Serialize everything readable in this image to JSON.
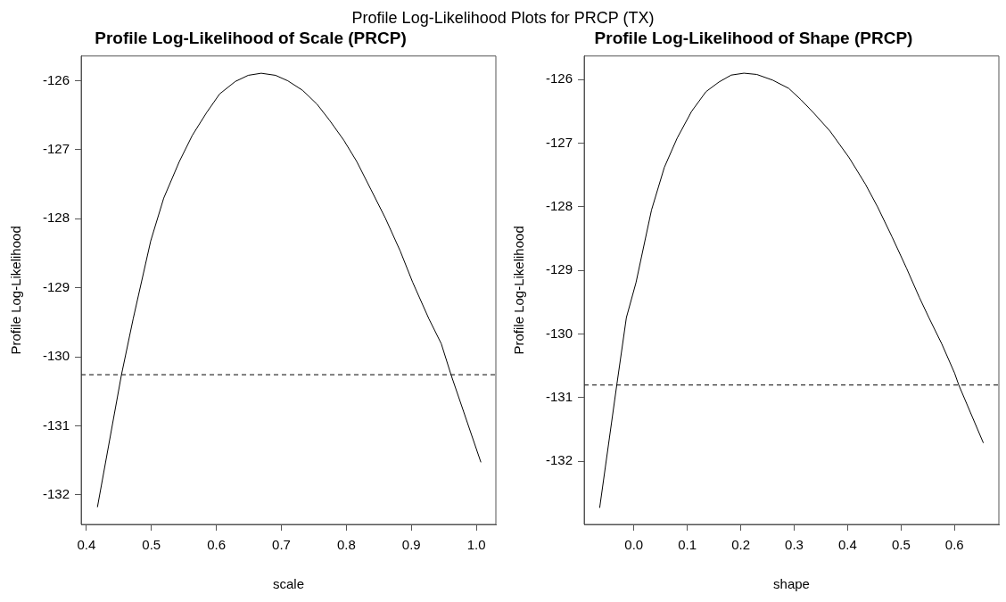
{
  "chart_data": [
    {
      "type": "line",
      "title": "Profile Log-Likelihood of Scale (PRCP)",
      "xlabel": "scale",
      "ylabel": "Profile Log-Likelihood",
      "annotations": [
        "Profile Log-Likelihood Plots for PRCP (TX)"
      ],
      "color": "#000000",
      "x": [
        0.417,
        0.454,
        0.472,
        0.499,
        0.519,
        0.543,
        0.563,
        0.585,
        0.605,
        0.629,
        0.649,
        0.669,
        0.691,
        0.71,
        0.733,
        0.755,
        0.774,
        0.796,
        0.816,
        0.838,
        0.86,
        0.883,
        0.902,
        0.927,
        0.946,
        0.961,
        1.007
      ],
      "values": [
        -132.18,
        -130.26,
        -129.45,
        -128.32,
        -127.7,
        -127.17,
        -126.79,
        -126.46,
        -126.19,
        -126.01,
        -125.92,
        -125.89,
        -125.92,
        -126.0,
        -126.14,
        -126.34,
        -126.57,
        -126.86,
        -127.17,
        -127.58,
        -127.99,
        -128.47,
        -128.92,
        -129.45,
        -129.81,
        -130.26,
        -131.53
      ],
      "xlim": [
        0.392,
        1.03
      ],
      "ylim": [
        -132.43,
        -125.64
      ],
      "xticks": [
        0.4,
        0.5,
        0.6,
        0.7,
        0.8,
        0.9,
        {
          "value": 1.0,
          "label": "1.0"
        }
      ],
      "yticks": [
        -132,
        -131,
        -130,
        -129,
        -128,
        -127,
        -126
      ],
      "ref_lines": [
        {
          "axis": "y",
          "value": -130.26,
          "line_style": "dashed",
          "color": "#000000"
        }
      ]
    },
    {
      "type": "line",
      "title": "Profile Log-Likelihood of Shape (PRCP)",
      "xlabel": "shape",
      "ylabel": "Profile Log-Likelihood",
      "color": "#000000",
      "x": [
        -0.064,
        -0.032,
        -0.014,
        0.004,
        0.021,
        0.033,
        0.057,
        0.081,
        0.108,
        0.135,
        0.159,
        0.182,
        0.206,
        0.23,
        0.26,
        0.29,
        0.313,
        0.337,
        0.367,
        0.403,
        0.433,
        0.456,
        0.483,
        0.51,
        0.534,
        0.552,
        0.576,
        0.6,
        0.608,
        0.654
      ],
      "values": [
        -132.73,
        -130.8,
        -129.74,
        -129.19,
        -128.52,
        -128.05,
        -127.38,
        -126.92,
        -126.5,
        -126.19,
        -126.04,
        -125.93,
        -125.9,
        -125.92,
        -126.01,
        -126.14,
        -126.32,
        -126.53,
        -126.81,
        -127.23,
        -127.64,
        -128.0,
        -128.47,
        -128.96,
        -129.42,
        -129.74,
        -130.15,
        -130.61,
        -130.8,
        -131.71
      ],
      "xlim": [
        -0.093,
        0.683
      ],
      "ylim": [
        -132.99,
        -125.63
      ],
      "xticks": [
        {
          "value": 0,
          "label": "0.0"
        },
        0.1,
        0.2,
        0.3,
        0.4,
        0.5,
        0.6
      ],
      "yticks": [
        -132,
        -131,
        -130,
        -129,
        -128,
        -127,
        -126
      ],
      "ref_lines": [
        {
          "axis": "y",
          "value": -130.8,
          "line_style": "dashed",
          "color": "#000000"
        }
      ]
    }
  ]
}
